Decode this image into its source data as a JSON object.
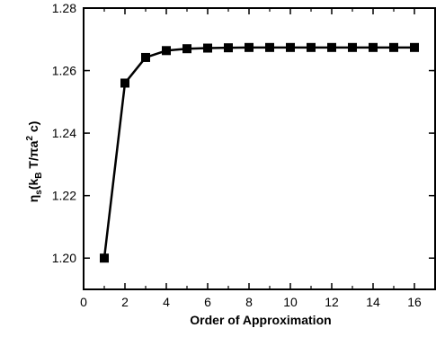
{
  "chart_data": {
    "type": "line",
    "xlabel": "Order of Approximation",
    "ylabel": {
      "prefix": "η",
      "prefix_sub": "s",
      "open": "(k",
      "k_sub": "B",
      "mid": " T/πa",
      "a_sup": "2",
      "end": " c)"
    },
    "xlim": [
      0,
      17
    ],
    "ylim": [
      1.19,
      1.28
    ],
    "x_ticks": [
      0,
      2,
      4,
      6,
      8,
      10,
      12,
      14,
      16
    ],
    "x_tick_labels": [
      "0",
      "2",
      "4",
      "6",
      "8",
      "10",
      "12",
      "14",
      "16"
    ],
    "y_ticks": [
      1.2,
      1.22,
      1.24,
      1.26,
      1.28
    ],
    "y_tick_labels": [
      "1.20",
      "1.22",
      "1.24",
      "1.26",
      "1.28"
    ],
    "grid": false,
    "series": [
      {
        "marker": "square",
        "color": "#000000",
        "x": [
          1,
          2,
          3,
          4,
          5,
          6,
          7,
          8,
          9,
          10,
          11,
          12,
          13,
          14,
          15,
          16
        ],
        "y": [
          1.2,
          1.256,
          1.2642,
          1.2664,
          1.267,
          1.2672,
          1.2673,
          1.2674,
          1.2674,
          1.2674,
          1.2674,
          1.2674,
          1.2674,
          1.2674,
          1.2674,
          1.2674
        ]
      }
    ]
  }
}
